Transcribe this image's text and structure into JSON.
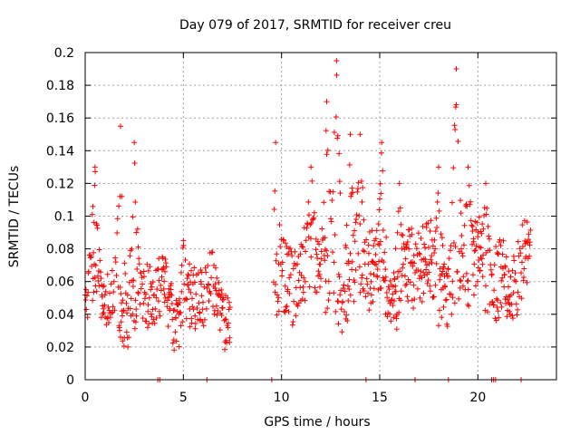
{
  "chart_data": {
    "type": "scatter",
    "title": "Day 079 of 2017, SRMTID for receiver creu",
    "xlabel": "GPS time / hours",
    "ylabel": "SRMTID / TECUs",
    "xlim": [
      0,
      24
    ],
    "ylim": [
      0,
      0.2
    ],
    "xticks": [
      0,
      5,
      10,
      15,
      20
    ],
    "yticks": [
      0,
      0.02,
      0.04,
      0.06,
      0.08,
      0.1,
      0.12,
      0.14,
      0.16,
      0.18,
      0.2
    ],
    "grid": true,
    "marker": "+",
    "color": "#ff0000",
    "series": [
      {
        "name": "SRMTID",
        "segments": [
          {
            "x_start": 0.0,
            "x_end": 7.4,
            "baseline": 0.048,
            "spread": 0.02,
            "peaks": [
              [
                0.5,
                0.13
              ],
              [
                1.8,
                0.155
              ],
              [
                2.5,
                0.145
              ],
              [
                2.6,
                0.09
              ],
              [
                5.0,
                0.085
              ]
            ]
          },
          {
            "x_start": 9.6,
            "x_end": 22.7,
            "baseline": 0.065,
            "spread": 0.025,
            "peaks": [
              [
                9.7,
                0.145
              ],
              [
                11.5,
                0.13
              ],
              [
                12.3,
                0.17
              ],
              [
                12.8,
                0.195
              ],
              [
                13.5,
                0.15
              ],
              [
                14.0,
                0.15
              ],
              [
                15.1,
                0.145
              ],
              [
                16.0,
                0.12
              ],
              [
                18.0,
                0.13
              ],
              [
                18.9,
                0.19
              ],
              [
                19.5,
                0.13
              ],
              [
                20.4,
                0.12
              ]
            ]
          }
        ],
        "zero_points": [
          3.7,
          3.8,
          6.2,
          9.5,
          14.3,
          16.8,
          18.5,
          20.7,
          20.8,
          20.9,
          22.2
        ]
      }
    ]
  }
}
